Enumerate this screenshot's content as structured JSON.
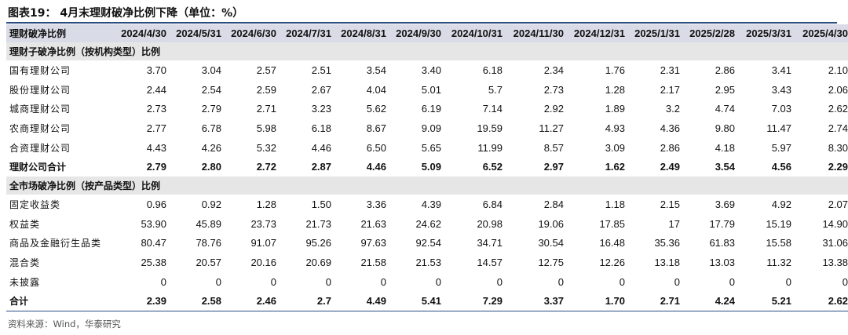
{
  "title": "图表19： 4月末理财破净比例下降（单位：%）",
  "header": {
    "label": "理财破净比例",
    "dates": [
      "2024/4/30",
      "2024/5/31",
      "2024/6/30",
      "2024/7/31",
      "2024/8/31",
      "2024/9/30",
      "2024/10/31",
      "2024/11/30",
      "2024/12/31",
      "2025/1/31",
      "2025/2/28",
      "2025/3/31",
      "2025/4/30"
    ]
  },
  "sections": [
    {
      "title": "理财子破净比例（按机构类型）比例",
      "rows": [
        {
          "label": "国有理财公司",
          "values": [
            "3.70",
            "3.04",
            "2.57",
            "2.51",
            "3.54",
            "3.40",
            "6.18",
            "2.34",
            "1.76",
            "2.31",
            "2.86",
            "3.41",
            "2.10"
          ]
        },
        {
          "label": "股份理财公司",
          "values": [
            "2.44",
            "2.54",
            "2.59",
            "2.67",
            "4.04",
            "5.01",
            "5.7",
            "2.73",
            "1.28",
            "2.17",
            "2.95",
            "3.43",
            "2.06"
          ]
        },
        {
          "label": "城商理财公司",
          "values": [
            "2.73",
            "2.79",
            "2.71",
            "3.23",
            "5.62",
            "6.19",
            "7.14",
            "2.92",
            "1.89",
            "3.2",
            "4.74",
            "7.03",
            "2.62"
          ]
        },
        {
          "label": "农商理财公司",
          "values": [
            "2.77",
            "6.78",
            "5.98",
            "6.18",
            "8.67",
            "9.09",
            "19.59",
            "11.27",
            "4.93",
            "4.36",
            "9.80",
            "11.47",
            "2.74"
          ]
        },
        {
          "label": "合资理财公司",
          "values": [
            "4.43",
            "4.26",
            "5.32",
            "4.46",
            "6.50",
            "5.65",
            "11.99",
            "8.57",
            "3.09",
            "2.86",
            "4.18",
            "5.97",
            "8.30"
          ]
        }
      ],
      "total": {
        "label": "理财公司合计",
        "values": [
          "2.79",
          "2.80",
          "2.72",
          "2.87",
          "4.46",
          "5.09",
          "6.52",
          "2.97",
          "1.62",
          "2.49",
          "3.54",
          "4.56",
          "2.29"
        ]
      }
    },
    {
      "title": "全市场破净比例（按产品类型）比例",
      "rows": [
        {
          "label": "固定收益类",
          "values": [
            "0.96",
            "0.92",
            "1.28",
            "1.50",
            "3.36",
            "4.39",
            "6.84",
            "2.84",
            "1.18",
            "2.15",
            "3.69",
            "4.92",
            "2.07"
          ]
        },
        {
          "label": "权益类",
          "values": [
            "53.90",
            "45.89",
            "23.73",
            "21.73",
            "21.63",
            "24.62",
            "20.98",
            "19.06",
            "17.85",
            "17",
            "17.79",
            "15.19",
            "14.90"
          ]
        },
        {
          "label": "商品及金融衍生品类",
          "values": [
            "80.47",
            "78.76",
            "91.07",
            "95.26",
            "97.63",
            "92.54",
            "34.71",
            "30.54",
            "16.48",
            "35.36",
            "61.83",
            "15.58",
            "31.06"
          ]
        },
        {
          "label": "混合类",
          "values": [
            "25.38",
            "20.57",
            "20.16",
            "20.69",
            "21.58",
            "21.53",
            "14.57",
            "12.75",
            "12.26",
            "13.18",
            "13.03",
            "11.32",
            "13.38"
          ]
        },
        {
          "label": "未披露",
          "values": [
            "0",
            "0",
            "0",
            "0",
            "0",
            "0",
            "0",
            "0",
            "0",
            "0",
            "0",
            "0",
            "0"
          ]
        }
      ],
      "total": {
        "label": "合计",
        "values": [
          "2.39",
          "2.58",
          "2.46",
          "2.7",
          "4.49",
          "5.41",
          "7.29",
          "3.37",
          "1.70",
          "2.71",
          "4.24",
          "5.21",
          "2.62"
        ]
      }
    }
  ],
  "source": "资料来源：Wind，华泰研究"
}
